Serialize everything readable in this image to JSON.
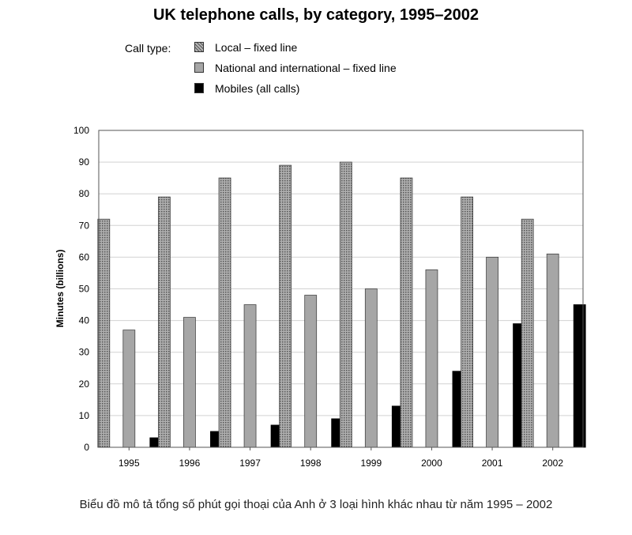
{
  "chart_data": {
    "type": "bar",
    "title": "UK telephone calls, by category, 1995–2002",
    "legend_title": "Call type:",
    "legend_placement": "top-left",
    "xlabel": "",
    "ylabel": "Minutes (billions)",
    "ylim": [
      0,
      100
    ],
    "yticks": [
      "0",
      "10",
      "20",
      "30",
      "40",
      "50",
      "60",
      "70",
      "80",
      "90",
      "100"
    ],
    "grid": true,
    "categories": [
      "1995",
      "1996",
      "1997",
      "1998",
      "1999",
      "2000",
      "2001",
      "2002"
    ],
    "series": [
      {
        "name": "Local – fixed line",
        "color": "#8c8c8c",
        "pattern": "dotted",
        "values": [
          72,
          79,
          85,
          89,
          90,
          85,
          79,
          72
        ]
      },
      {
        "name": "National and international – fixed line",
        "color": "#a6a6a6",
        "pattern": "solid",
        "values": [
          37,
          41,
          45,
          48,
          50,
          56,
          60,
          61
        ]
      },
      {
        "name": "Mobiles (all calls)",
        "color": "#000000",
        "pattern": "solid",
        "values": [
          3,
          5,
          7,
          9,
          13,
          24,
          39,
          45
        ]
      }
    ]
  },
  "caption": "Biểu đồ mô tả tổng số phút gọi thoại của Anh ở 3 loại hình khác nhau từ năm 1995 – 2002"
}
